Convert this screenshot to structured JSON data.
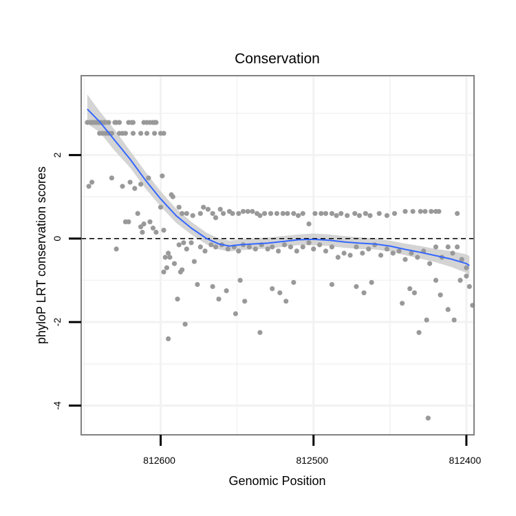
{
  "chart_data": {
    "type": "scatter",
    "title": "Conservation",
    "xlabel": "Genomic Position",
    "ylabel": "phyloP LRT conservation scores",
    "x_reversed": true,
    "xlim": [
      812652,
      812395
    ],
    "ylim": [
      -4.7,
      3.9
    ],
    "x_ticks": [
      812600,
      812500,
      812400
    ],
    "x_tick_labels": [
      "812600",
      "812500",
      "812400"
    ],
    "y_ticks": [
      2,
      0,
      -2,
      -4
    ],
    "y_tick_labels": [
      "2",
      "0",
      "-2",
      "-4"
    ],
    "reference_line": {
      "y": 0,
      "style": "dashed"
    },
    "colors": {
      "points": "#999999",
      "smooth": "#3366ff",
      "ribbon": "#cccccc",
      "panel_border": "#808080",
      "grid": "#f2f2f2"
    },
    "points": [
      [
        812648,
        2.78
      ],
      [
        812646,
        2.78
      ],
      [
        812645,
        2.78
      ],
      [
        812644,
        2.78
      ],
      [
        812643,
        2.78
      ],
      [
        812642,
        2.78
      ],
      [
        812641,
        2.78
      ],
      [
        812640,
        2.78
      ],
      [
        812639,
        2.78
      ],
      [
        812637,
        2.78
      ],
      [
        812636,
        2.78
      ],
      [
        812634,
        2.78
      ],
      [
        812630,
        2.78
      ],
      [
        812629,
        2.78
      ],
      [
        812627,
        2.78
      ],
      [
        812621,
        2.78
      ],
      [
        812619,
        2.78
      ],
      [
        812618,
        2.78
      ],
      [
        812611,
        2.78
      ],
      [
        812609,
        2.78
      ],
      [
        812607,
        2.78
      ],
      [
        812605,
        2.78
      ],
      [
        812604,
        2.78
      ],
      [
        812603,
        2.78
      ],
      [
        812640,
        2.52
      ],
      [
        812638,
        2.52
      ],
      [
        812636,
        2.52
      ],
      [
        812634,
        2.52
      ],
      [
        812632,
        2.52
      ],
      [
        812627,
        2.52
      ],
      [
        812625,
        2.52
      ],
      [
        812623,
        2.52
      ],
      [
        812618,
        2.52
      ],
      [
        812613,
        2.52
      ],
      [
        812609,
        2.52
      ],
      [
        812604,
        2.52
      ],
      [
        812600,
        2.52
      ],
      [
        812598,
        2.52
      ],
      [
        812647,
        1.25
      ],
      [
        812645,
        1.35
      ],
      [
        812632,
        1.45
      ],
      [
        812625,
        1.25
      ],
      [
        812620,
        1.35
      ],
      [
        812617,
        1.2
      ],
      [
        812613,
        1.3
      ],
      [
        812611,
        0.35
      ],
      [
        812608,
        1.45
      ],
      [
        812599,
        1.5
      ],
      [
        812593,
        1.05
      ],
      [
        812592,
        1.0
      ],
      [
        812600,
        0.75
      ],
      [
        812621,
        0.4
      ],
      [
        812615,
        0.6
      ],
      [
        812613,
        0.28
      ],
      [
        812612,
        0.15
      ],
      [
        812605,
        0.25
      ],
      [
        812598,
        0.2
      ],
      [
        812629,
        -0.25
      ],
      [
        812623,
        0.4
      ],
      [
        812607,
        0.4
      ],
      [
        812603,
        0.15
      ],
      [
        812598,
        -0.8
      ],
      [
        812597,
        -0.45
      ],
      [
        812596,
        -0.7
      ],
      [
        812595,
        -0.35
      ],
      [
        812594,
        -0.45
      ],
      [
        812591,
        -0.6
      ],
      [
        812588,
        -0.15
      ],
      [
        812587,
        -0.8
      ],
      [
        812586,
        -0.75
      ],
      [
        812585,
        -0.1
      ],
      [
        812583,
        -0.25
      ],
      [
        812580,
        -0.1
      ],
      [
        812578,
        -0.55
      ],
      [
        812576,
        -1.1
      ],
      [
        812584,
        -2.05
      ],
      [
        812589,
        -1.45
      ],
      [
        812595,
        -2.4
      ],
      [
        812588,
        0.75
      ],
      [
        812586,
        0.6
      ],
      [
        812583,
        0.6
      ],
      [
        812579,
        0.55
      ],
      [
        812574,
        0.6
      ],
      [
        812572,
        0.75
      ],
      [
        812569,
        0.7
      ],
      [
        812566,
        0.6
      ],
      [
        812564,
        0.5
      ],
      [
        812561,
        0.7
      ],
      [
        812559,
        0.6
      ],
      [
        812555,
        0.65
      ],
      [
        812553,
        0.6
      ],
      [
        812549,
        0.6
      ],
      [
        812546,
        0.65
      ],
      [
        812543,
        0.65
      ],
      [
        812540,
        0.65
      ],
      [
        812537,
        0.6
      ],
      [
        812535,
        0.55
      ],
      [
        812532,
        0.6
      ],
      [
        812528,
        0.6
      ],
      [
        812524,
        0.6
      ],
      [
        812520,
        0.6
      ],
      [
        812517,
        0.6
      ],
      [
        812513,
        0.6
      ],
      [
        812510,
        0.55
      ],
      [
        812507,
        0.6
      ],
      [
        812503,
        0.35
      ],
      [
        812499,
        0.6
      ],
      [
        812495,
        0.6
      ],
      [
        812492,
        0.6
      ],
      [
        812488,
        0.6
      ],
      [
        812485,
        0.55
      ],
      [
        812482,
        0.6
      ],
      [
        812478,
        0.55
      ],
      [
        812473,
        0.6
      ],
      [
        812470,
        0.55
      ],
      [
        812466,
        0.6
      ],
      [
        812463,
        0.55
      ],
      [
        812457,
        0.6
      ],
      [
        812452,
        0.55
      ],
      [
        812447,
        0.6
      ],
      [
        812440,
        0.65
      ],
      [
        812435,
        0.65
      ],
      [
        812430,
        0.65
      ],
      [
        812427,
        0.65
      ],
      [
        812423,
        0.65
      ],
      [
        812420,
        0.65
      ],
      [
        812418,
        0.65
      ],
      [
        812406,
        0.6
      ],
      [
        812574,
        -0.2
      ],
      [
        812571,
        -0.3
      ],
      [
        812567,
        -0.15
      ],
      [
        812564,
        -0.2
      ],
      [
        812560,
        -0.15
      ],
      [
        812556,
        -0.25
      ],
      [
        812552,
        -0.2
      ],
      [
        812549,
        -0.3
      ],
      [
        812546,
        -0.15
      ],
      [
        812542,
        -0.2
      ],
      [
        812538,
        -0.25
      ],
      [
        812534,
        -0.15
      ],
      [
        812530,
        -0.25
      ],
      [
        812527,
        -0.2
      ],
      [
        812523,
        -0.3
      ],
      [
        812519,
        -0.15
      ],
      [
        812515,
        -0.2
      ],
      [
        812511,
        -0.3
      ],
      [
        812507,
        -0.2
      ],
      [
        812503,
        -0.1
      ],
      [
        812500,
        -0.25
      ],
      [
        812496,
        -0.15
      ],
      [
        812492,
        -0.3
      ],
      [
        812488,
        -0.2
      ],
      [
        812484,
        -0.45
      ],
      [
        812480,
        -0.35
      ],
      [
        812476,
        -0.4
      ],
      [
        812472,
        -0.2
      ],
      [
        812468,
        -0.35
      ],
      [
        812464,
        -0.25
      ],
      [
        812460,
        -0.15
      ],
      [
        812456,
        -0.4
      ],
      [
        812452,
        -0.25
      ],
      [
        812448,
        -0.35
      ],
      [
        812444,
        -0.3
      ],
      [
        812440,
        -0.5
      ],
      [
        812436,
        -0.35
      ],
      [
        812432,
        -0.45
      ],
      [
        812428,
        -0.3
      ],
      [
        812424,
        -0.6
      ],
      [
        812420,
        -0.2
      ],
      [
        812416,
        -0.45
      ],
      [
        812412,
        -0.2
      ],
      [
        812409,
        -0.35
      ],
      [
        812406,
        -0.2
      ],
      [
        812403,
        -0.5
      ],
      [
        812400,
        -0.7
      ],
      [
        812566,
        -1.15
      ],
      [
        812562,
        -1.45
      ],
      [
        812557,
        -1.25
      ],
      [
        812551,
        -1.8
      ],
      [
        812548,
        -1.0
      ],
      [
        812545,
        -1.5
      ],
      [
        812535,
        -2.25
      ],
      [
        812527,
        -1.2
      ],
      [
        812522,
        -1.3
      ],
      [
        812518,
        -1.5
      ],
      [
        812513,
        -1.05
      ],
      [
        812488,
        -1.1
      ],
      [
        812472,
        -1.15
      ],
      [
        812467,
        -1.3
      ],
      [
        812462,
        -1.05
      ],
      [
        812442,
        -1.55
      ],
      [
        812437,
        -1.2
      ],
      [
        812434,
        -1.3
      ],
      [
        812431,
        -2.25
      ],
      [
        812426,
        -1.95
      ],
      [
        812420,
        -1.0
      ],
      [
        812417,
        -1.35
      ],
      [
        812412,
        -1.7
      ],
      [
        812408,
        -1.95
      ],
      [
        812404,
        -1.0
      ],
      [
        812400,
        -0.9
      ],
      [
        812398,
        -1.15
      ],
      [
        812396,
        -1.6
      ],
      [
        812425,
        -4.3
      ]
    ],
    "smooth_line": [
      [
        812648,
        3.1
      ],
      [
        812640,
        2.8
      ],
      [
        812630,
        2.35
      ],
      [
        812620,
        1.9
      ],
      [
        812610,
        1.4
      ],
      [
        812600,
        0.95
      ],
      [
        812590,
        0.55
      ],
      [
        812580,
        0.25
      ],
      [
        812570,
        0.0
      ],
      [
        812562,
        -0.13
      ],
      [
        812555,
        -0.18
      ],
      [
        812548,
        -0.15
      ],
      [
        812540,
        -0.13
      ],
      [
        812530,
        -0.11
      ],
      [
        812520,
        -0.07
      ],
      [
        812510,
        -0.03
      ],
      [
        812500,
        -0.02
      ],
      [
        812490,
        -0.04
      ],
      [
        812480,
        -0.08
      ],
      [
        812470,
        -0.11
      ],
      [
        812460,
        -0.13
      ],
      [
        812450,
        -0.18
      ],
      [
        812440,
        -0.26
      ],
      [
        812430,
        -0.33
      ],
      [
        812420,
        -0.41
      ],
      [
        812410,
        -0.49
      ],
      [
        812400,
        -0.6
      ],
      [
        812398,
        -0.65
      ]
    ],
    "ribbon": {
      "upper": [
        [
          812648,
          3.45
        ],
        [
          812640,
          3.05
        ],
        [
          812630,
          2.6
        ],
        [
          812620,
          2.1
        ],
        [
          812610,
          1.6
        ],
        [
          812600,
          1.13
        ],
        [
          812590,
          0.72
        ],
        [
          812580,
          0.4
        ],
        [
          812570,
          0.14
        ],
        [
          812562,
          0.0
        ],
        [
          812555,
          -0.05
        ],
        [
          812548,
          -0.02
        ],
        [
          812540,
          0.0
        ],
        [
          812530,
          0.02
        ],
        [
          812520,
          0.06
        ],
        [
          812510,
          0.1
        ],
        [
          812500,
          0.12
        ],
        [
          812490,
          0.1
        ],
        [
          812480,
          0.06
        ],
        [
          812470,
          0.03
        ],
        [
          812460,
          0.0
        ],
        [
          812450,
          -0.05
        ],
        [
          812440,
          -0.12
        ],
        [
          812430,
          -0.18
        ],
        [
          812420,
          -0.25
        ],
        [
          812410,
          -0.3
        ],
        [
          812400,
          -0.38
        ],
        [
          812398,
          -0.42
        ]
      ],
      "lower": [
        [
          812648,
          2.75
        ],
        [
          812640,
          2.55
        ],
        [
          812630,
          2.1
        ],
        [
          812620,
          1.7
        ],
        [
          812610,
          1.2
        ],
        [
          812600,
          0.77
        ],
        [
          812590,
          0.38
        ],
        [
          812580,
          0.1
        ],
        [
          812570,
          -0.14
        ],
        [
          812562,
          -0.26
        ],
        [
          812555,
          -0.31
        ],
        [
          812548,
          -0.28
        ],
        [
          812540,
          -0.26
        ],
        [
          812530,
          -0.24
        ],
        [
          812520,
          -0.2
        ],
        [
          812510,
          -0.16
        ],
        [
          812500,
          -0.16
        ],
        [
          812490,
          -0.18
        ],
        [
          812480,
          -0.22
        ],
        [
          812470,
          -0.25
        ],
        [
          812460,
          -0.26
        ],
        [
          812450,
          -0.31
        ],
        [
          812440,
          -0.4
        ],
        [
          812430,
          -0.48
        ],
        [
          812420,
          -0.57
        ],
        [
          812410,
          -0.68
        ],
        [
          812400,
          -0.82
        ],
        [
          812398,
          -0.88
        ]
      ]
    }
  }
}
